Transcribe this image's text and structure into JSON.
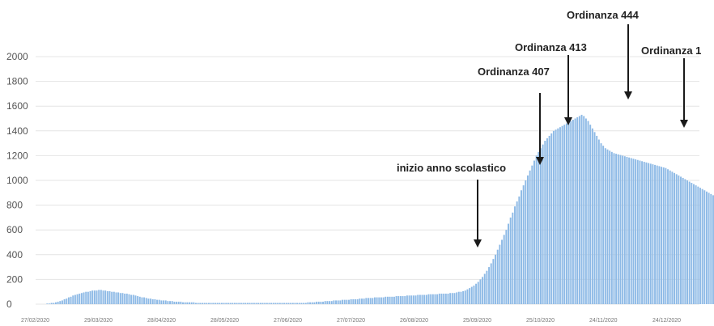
{
  "chart_data": {
    "type": "bar",
    "title": "",
    "xlabel": "",
    "ylabel": "",
    "ylim": [
      0,
      2000
    ],
    "grid": true,
    "legend": "none",
    "colors": {
      "bars": "#8ebae6",
      "grid": "#e4e4e4",
      "annotation": "#1a1a1a"
    },
    "y_ticks": [
      "0",
      "200",
      "400",
      "600",
      "800",
      "1000",
      "1200",
      "1400",
      "1600",
      "1800",
      "2000"
    ],
    "x_tick_labels": [
      "27/02/2020",
      "29/03/2020",
      "28/04/2020",
      "28/05/2020",
      "27/06/2020",
      "27/07/2020",
      "26/08/2020",
      "25/09/2020",
      "25/10/2020",
      "24/11/2020",
      "24/12/2020"
    ],
    "x_start": "2020-02-27",
    "x_end": "2020-12-31",
    "series": [
      {
        "values": [
          0,
          0,
          0,
          0,
          0,
          5,
          5,
          10,
          10,
          15,
          20,
          25,
          30,
          40,
          45,
          55,
          60,
          70,
          75,
          80,
          85,
          90,
          95,
          100,
          100,
          105,
          110,
          110,
          110,
          115,
          115,
          110,
          110,
          105,
          105,
          100,
          100,
          95,
          95,
          90,
          90,
          85,
          85,
          80,
          75,
          75,
          70,
          65,
          60,
          55,
          55,
          50,
          45,
          45,
          40,
          40,
          35,
          35,
          30,
          30,
          30,
          25,
          25,
          25,
          20,
          20,
          20,
          20,
          15,
          15,
          15,
          15,
          15,
          15,
          10,
          10,
          10,
          10,
          10,
          10,
          10,
          10,
          10,
          10,
          10,
          10,
          10,
          10,
          10,
          10,
          10,
          10,
          10,
          10,
          10,
          10,
          10,
          10,
          10,
          10,
          10,
          10,
          10,
          10,
          10,
          10,
          10,
          10,
          10,
          10,
          10,
          10,
          10,
          10,
          10,
          10,
          10,
          10,
          10,
          10,
          10,
          10,
          10,
          10,
          10,
          10,
          15,
          15,
          15,
          15,
          20,
          20,
          20,
          20,
          25,
          25,
          25,
          25,
          30,
          30,
          30,
          30,
          35,
          35,
          35,
          35,
          40,
          40,
          40,
          40,
          45,
          45,
          45,
          50,
          50,
          50,
          50,
          55,
          55,
          55,
          55,
          55,
          60,
          60,
          60,
          60,
          60,
          65,
          65,
          65,
          65,
          65,
          70,
          70,
          70,
          70,
          70,
          75,
          75,
          75,
          75,
          75,
          80,
          80,
          80,
          80,
          80,
          85,
          85,
          85,
          85,
          85,
          90,
          90,
          90,
          95,
          100,
          100,
          105,
          110,
          120,
          130,
          140,
          150,
          165,
          180,
          200,
          220,
          245,
          270,
          300,
          330,
          365,
          400,
          440,
          480,
          520,
          560,
          600,
          650,
          700,
          740,
          790,
          830,
          870,
          920,
          960,
          1000,
          1040,
          1080,
          1120,
          1160,
          1200,
          1230,
          1260,
          1290,
          1320,
          1340,
          1360,
          1380,
          1400,
          1410,
          1420,
          1430,
          1440,
          1450,
          1460,
          1470,
          1480,
          1490,
          1500,
          1510,
          1520,
          1530,
          1520,
          1500,
          1480,
          1450,
          1420,
          1390,
          1360,
          1330,
          1300,
          1280,
          1260,
          1250,
          1240,
          1230,
          1220,
          1215,
          1210,
          1205,
          1200,
          1195,
          1190,
          1185,
          1180,
          1175,
          1170,
          1165,
          1160,
          1155,
          1150,
          1145,
          1140,
          1135,
          1130,
          1125,
          1120,
          1115,
          1110,
          1105,
          1100,
          1090,
          1080,
          1070,
          1060,
          1050,
          1040,
          1030,
          1020,
          1010,
          1000,
          990,
          980,
          970,
          960,
          950,
          940,
          930,
          920,
          910,
          900,
          890,
          880
        ]
      }
    ],
    "annotations": [
      {
        "text": "inizio anno scolastico",
        "date": "2020-09-14"
      },
      {
        "text": "Ordinanza 407",
        "date": "2020-10-23"
      },
      {
        "text": "Ordinanza 413",
        "date": "2020-10-31"
      },
      {
        "text": "Ordinanza 444",
        "date": "2020-11-15"
      },
      {
        "text": "Ordinanza 1",
        "date": "2020-12-12"
      }
    ]
  }
}
